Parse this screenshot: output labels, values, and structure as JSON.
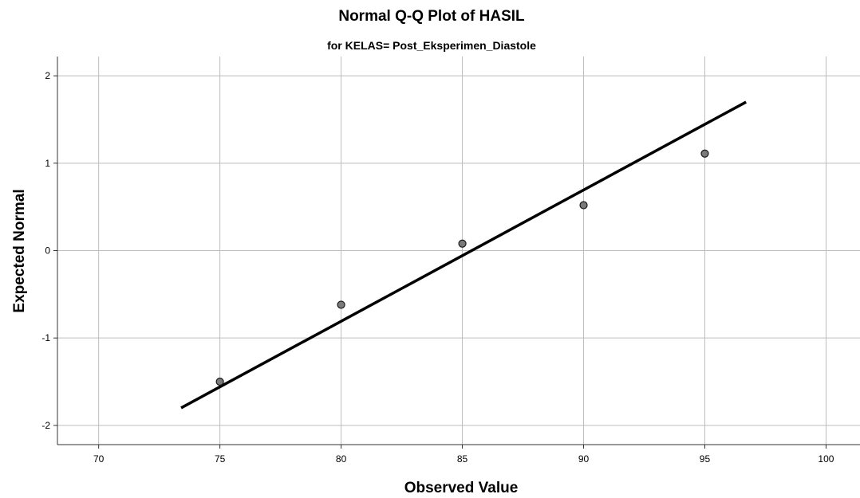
{
  "chart_data": {
    "type": "scatter",
    "title": "Normal Q-Q Plot of HASIL",
    "subtitle": "for KELAS= Post_Eksperimen_Diastole",
    "xlabel": "Observed Value",
    "ylabel": "Expected Normal",
    "xlim": [
      68.3,
      101.4
    ],
    "ylim": [
      -2.22,
      2.22
    ],
    "xticks": [
      70,
      75,
      80,
      85,
      90,
      95,
      100
    ],
    "yticks": [
      -2,
      -1,
      0,
      1,
      2
    ],
    "grid": true,
    "points": [
      {
        "x": 75,
        "y": -1.5
      },
      {
        "x": 80,
        "y": -0.62
      },
      {
        "x": 85,
        "y": 0.08
      },
      {
        "x": 90,
        "y": 0.52
      },
      {
        "x": 95,
        "y": 1.11
      }
    ],
    "reference_line": {
      "x": [
        73.4,
        96.7
      ],
      "y": [
        -1.8,
        1.7
      ]
    },
    "colors": {
      "point_fill": "#7a7a7a",
      "line": "#000000",
      "grid": "#bdbdbd"
    }
  }
}
